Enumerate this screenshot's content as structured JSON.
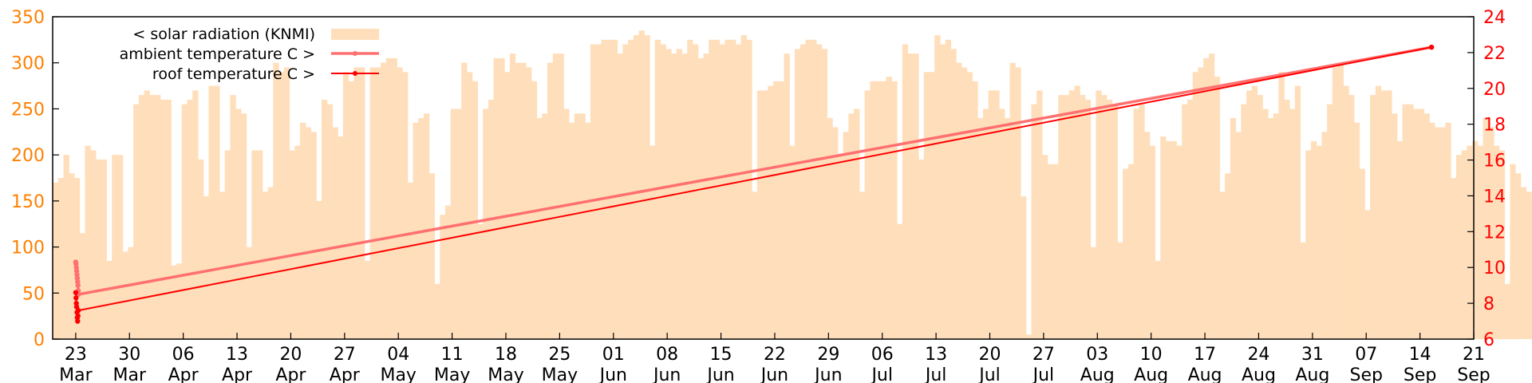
{
  "chart_data": {
    "type": "bar+line",
    "title": "",
    "y_left": {
      "range": [
        0,
        350
      ],
      "ticks": [
        0,
        50,
        100,
        150,
        200,
        250,
        300,
        350
      ]
    },
    "y_right": {
      "range": [
        6,
        24
      ],
      "ticks": [
        6,
        8,
        10,
        12,
        14,
        16,
        18,
        20,
        22,
        24
      ]
    },
    "x_range": [
      "2017-03-20",
      "2017-09-21"
    ],
    "x_ticks": [
      {
        "date": "2017-03-23",
        "day": "23",
        "month": "Mar"
      },
      {
        "date": "2017-03-30",
        "day": "30",
        "month": "Mar"
      },
      {
        "date": "2017-04-06",
        "day": "06",
        "month": "Apr"
      },
      {
        "date": "2017-04-13",
        "day": "13",
        "month": "Apr"
      },
      {
        "date": "2017-04-20",
        "day": "20",
        "month": "Apr"
      },
      {
        "date": "2017-04-27",
        "day": "27",
        "month": "Apr"
      },
      {
        "date": "2017-05-04",
        "day": "04",
        "month": "May"
      },
      {
        "date": "2017-05-11",
        "day": "11",
        "month": "May"
      },
      {
        "date": "2017-05-18",
        "day": "18",
        "month": "May"
      },
      {
        "date": "2017-05-25",
        "day": "25",
        "month": "May"
      },
      {
        "date": "2017-06-01",
        "day": "01",
        "month": "Jun"
      },
      {
        "date": "2017-06-08",
        "day": "08",
        "month": "Jun"
      },
      {
        "date": "2017-06-15",
        "day": "15",
        "month": "Jun"
      },
      {
        "date": "2017-06-22",
        "day": "22",
        "month": "Jun"
      },
      {
        "date": "2017-06-29",
        "day": "29",
        "month": "Jun"
      },
      {
        "date": "2017-07-06",
        "day": "06",
        "month": "Jul"
      },
      {
        "date": "2017-07-13",
        "day": "13",
        "month": "Jul"
      },
      {
        "date": "2017-07-20",
        "day": "20",
        "month": "Jul"
      },
      {
        "date": "2017-07-27",
        "day": "27",
        "month": "Jul"
      },
      {
        "date": "2017-08-03",
        "day": "03",
        "month": "Aug"
      },
      {
        "date": "2017-08-10",
        "day": "10",
        "month": "Aug"
      },
      {
        "date": "2017-08-17",
        "day": "17",
        "month": "Aug"
      },
      {
        "date": "2017-08-24",
        "day": "24",
        "month": "Aug"
      },
      {
        "date": "2017-08-31",
        "day": "31",
        "month": "Aug"
      },
      {
        "date": "2017-09-07",
        "day": "07",
        "month": "Sep"
      },
      {
        "date": "2017-09-14",
        "day": "14",
        "month": "Sep"
      },
      {
        "date": "2017-09-21",
        "day": "21",
        "month": "Sep"
      }
    ],
    "legend_position": "top-left",
    "series": [
      {
        "name": "< solar radiation (KNMI)",
        "axis": "left",
        "kind": "bar",
        "color": "#ffdfbb",
        "start_date": "2017-03-20",
        "values": [
          170,
          175,
          200,
          180,
          175,
          115,
          210,
          205,
          195,
          195,
          85,
          200,
          200,
          95,
          100,
          255,
          265,
          270,
          265,
          265,
          260,
          260,
          80,
          82,
          255,
          260,
          270,
          195,
          155,
          275,
          275,
          160,
          205,
          265,
          250,
          245,
          100,
          205,
          205,
          160,
          165,
          300,
          290,
          295,
          205,
          210,
          235,
          230,
          225,
          150,
          260,
          255,
          230,
          220,
          290,
          280,
          295,
          295,
          85,
          295,
          295,
          300,
          305,
          305,
          295,
          290,
          170,
          235,
          240,
          245,
          180,
          60,
          135,
          145,
          250,
          250,
          300,
          290,
          280,
          125,
          250,
          260,
          305,
          305,
          290,
          310,
          300,
          300,
          295,
          280,
          240,
          245,
          300,
          310,
          310,
          250,
          235,
          245,
          245,
          235,
          320,
          320,
          325,
          325,
          325,
          310,
          320,
          325,
          330,
          335,
          330,
          210,
          325,
          320,
          315,
          310,
          315,
          310,
          325,
          320,
          305,
          310,
          325,
          325,
          320,
          325,
          325,
          320,
          330,
          325,
          160,
          270,
          270,
          275,
          280,
          280,
          310,
          210,
          315,
          320,
          325,
          325,
          320,
          315,
          240,
          230,
          200,
          225,
          245,
          250,
          160,
          270,
          280,
          280,
          280,
          285,
          280,
          125,
          320,
          310,
          310,
          195,
          290,
          290,
          330,
          320,
          325,
          315,
          300,
          295,
          290,
          280,
          240,
          250,
          270,
          270,
          250,
          240,
          300,
          295,
          155,
          5,
          255,
          270,
          200,
          190,
          190,
          265,
          265,
          270,
          275,
          265,
          260,
          100,
          270,
          265,
          260,
          255,
          105,
          185,
          190,
          250,
          255,
          225,
          210,
          85,
          220,
          215,
          215,
          210,
          255,
          260,
          290,
          295,
          305,
          310,
          285,
          160,
          180,
          240,
          225,
          255,
          270,
          275,
          265,
          250,
          240,
          245,
          290,
          260,
          250,
          275,
          105,
          205,
          215,
          210,
          225,
          255,
          295,
          300,
          275,
          265,
          235,
          185,
          140,
          265,
          275,
          270,
          270,
          245,
          215,
          255,
          255,
          250,
          250,
          245,
          235,
          230,
          230,
          235,
          175,
          200,
          205,
          210,
          215,
          210,
          240,
          230,
          210,
          205,
          60,
          190,
          180,
          165,
          160,
          150,
          150
        ]
      },
      {
        "name": "ambient temperature C >",
        "axis": "right",
        "kind": "line",
        "color": "#ff7070",
        "points": [
          [
            "2017-03-23 00:00",
            10.3
          ],
          [
            "2017-03-23 01:00",
            10.2
          ],
          [
            "2017-03-23 02:00",
            10.0
          ],
          [
            "2017-03-23 03:00",
            9.8
          ],
          [
            "2017-03-23 04:00",
            9.6
          ],
          [
            "2017-03-23 05:00",
            9.4
          ],
          [
            "2017-03-23 06:00",
            9.2
          ],
          [
            "2017-03-23 07:00",
            9.0
          ],
          [
            "2017-03-23 08:00",
            8.7
          ],
          [
            "2017-03-23 09:00",
            8.5
          ],
          [
            "2017-09-15 12:00",
            22.3
          ]
        ]
      },
      {
        "name": "roof temperature C >",
        "axis": "right",
        "kind": "line",
        "color": "#ff0000",
        "points": [
          [
            "2017-03-23 00:00",
            8.6
          ],
          [
            "2017-03-23 01:00",
            8.3
          ],
          [
            "2017-03-23 02:00",
            8.0
          ],
          [
            "2017-03-23 03:00",
            7.8
          ],
          [
            "2017-03-23 04:00",
            7.5
          ],
          [
            "2017-03-23 05:00",
            7.2
          ],
          [
            "2017-03-23 06:00",
            7.0
          ],
          [
            "2017-03-23 07:00",
            7.3
          ],
          [
            "2017-03-23 08:00",
            7.6
          ],
          [
            "2017-09-15 12:00",
            22.3
          ]
        ]
      }
    ],
    "axis_colors": {
      "left": "#ff7f00",
      "right": "#ff0000",
      "x": "#000000"
    }
  }
}
